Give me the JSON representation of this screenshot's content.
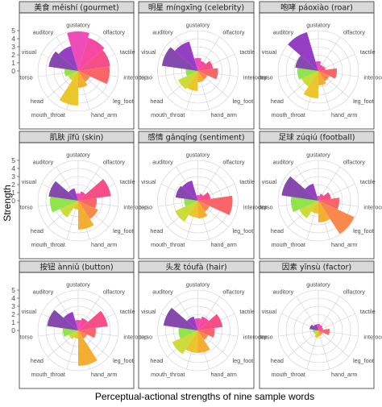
{
  "chart_data": {
    "type": "bar",
    "subtype": "polar",
    "xlabel": "Perceptual-actional strengths of nine sample words",
    "ylabel": "Strength",
    "ylim": [
      0,
      5
    ],
    "yticks": [
      "0",
      "1",
      "2",
      "3",
      "4",
      "5"
    ],
    "grid": true,
    "legend": "none",
    "categories": [
      "gustatory",
      "olfactory",
      "tactile",
      "interoceptive",
      "leg_foot",
      "hand_arm",
      "mouth_throat",
      "head",
      "torso",
      "visual",
      "auditory"
    ],
    "category_labels": [
      "gustatory",
      "olfactory",
      "tactile",
      "interocep",
      "leg_foot",
      "hand_arm",
      "mouth_throat",
      "head",
      "torso",
      "visual",
      "auditory"
    ],
    "colors": [
      "#ee3cb3",
      "#f4399a",
      "#f5407d",
      "#f9585c",
      "#f77e3c",
      "#f3a821",
      "#e9c21b",
      "#c7d92a",
      "#86e33c",
      "#7c3aa6",
      "#8b2fbf"
    ],
    "panels": [
      {
        "title": "美食 měishí (gourmet)",
        "values": [
          4.9,
          4.3,
          4.0,
          3.9,
          1.6,
          2.1,
          4.3,
          1.4,
          1.7,
          3.7,
          3.2
        ]
      },
      {
        "title": "明星 míngxīng (celebrity)",
        "values": [
          1.6,
          1.3,
          1.9,
          2.5,
          1.3,
          1.4,
          2.5,
          2.7,
          1.5,
          4.5,
          3.8
        ]
      },
      {
        "title": "咆哮 páoxiào (roar)",
        "values": [
          1.2,
          0.8,
          0.9,
          2.3,
          1.5,
          1.8,
          3.4,
          2.3,
          2.6,
          2.9,
          5.0
        ]
      },
      {
        "title": "肌肤 jīfū (skin)",
        "values": [
          0.9,
          1.2,
          4.1,
          2.3,
          2.7,
          3.6,
          1.1,
          2.5,
          3.5,
          3.7,
          1.6
        ]
      },
      {
        "title": "感情 gǎnqíng (sentiment)",
        "values": [
          0.7,
          0.9,
          1.6,
          4.3,
          1.6,
          2.2,
          2.1,
          3.1,
          1.7,
          2.8,
          2.6
        ]
      },
      {
        "title": "足球 zúqiú (football)",
        "values": [
          0.6,
          0.9,
          1.6,
          2.6,
          4.9,
          2.7,
          1.6,
          2.6,
          3.4,
          4.6,
          2.2
        ]
      },
      {
        "title": "按钮 ànniǔ (button)",
        "values": [
          1.3,
          1.6,
          3.7,
          2.2,
          1.2,
          4.4,
          1.0,
          1.3,
          1.9,
          3.9,
          2.4
        ]
      },
      {
        "title": "头发 tóufà (hair)",
        "values": [
          1.5,
          1.8,
          3.1,
          2.1,
          1.4,
          2.8,
          2.8,
          3.5,
          2.4,
          4.3,
          1.8
        ]
      },
      {
        "title": "因素 yīnsù (factor)",
        "values": [
          0.8,
          0.7,
          0.6,
          1.4,
          0.6,
          0.7,
          0.9,
          0.6,
          0.7,
          1.1,
          0.8
        ]
      }
    ]
  }
}
